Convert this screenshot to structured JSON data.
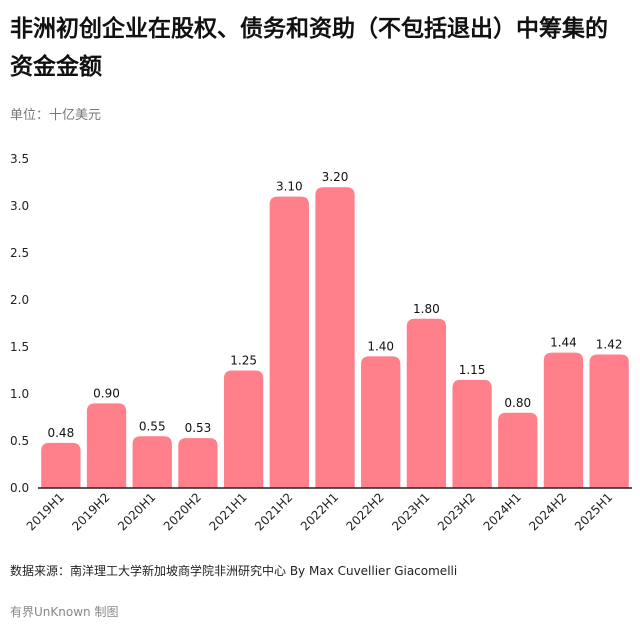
{
  "title": "非洲初创企业在股权、债务和资助（不包括退出）中筹集的资金金额",
  "unit": "单位：十亿美元",
  "source": "数据来源：南洋理工大学新加坡商学院非洲研究中心 By Max Cuvellier Giacomelli",
  "credit": "有界UnKnown 制图",
  "colors": {
    "bar": "#ff7f8a",
    "axis": "#222222"
  },
  "chart_data": {
    "type": "bar",
    "categories": [
      "2019H1",
      "2019H2",
      "2020H1",
      "2020H2",
      "2021H1",
      "2021H2",
      "2022H1",
      "2022H2",
      "2023H1",
      "2023H2",
      "2024H1",
      "2024H2",
      "2025H1"
    ],
    "values": [
      0.48,
      0.9,
      0.55,
      0.53,
      1.25,
      3.1,
      3.2,
      1.4,
      1.8,
      1.15,
      0.8,
      1.44,
      1.42
    ],
    "value_labels": [
      "0.48",
      "0.90",
      "0.55",
      "0.53",
      "1.25",
      "3.10",
      "3.20",
      "1.40",
      "1.80",
      "1.15",
      "0.80",
      "1.44",
      "1.42"
    ],
    "ylim": [
      0,
      3.5
    ],
    "yticks": [
      "0.0",
      "0.5",
      "1.0",
      "1.5",
      "2.0",
      "2.5",
      "3.0",
      "3.5"
    ],
    "grid": false,
    "legend": "none"
  }
}
